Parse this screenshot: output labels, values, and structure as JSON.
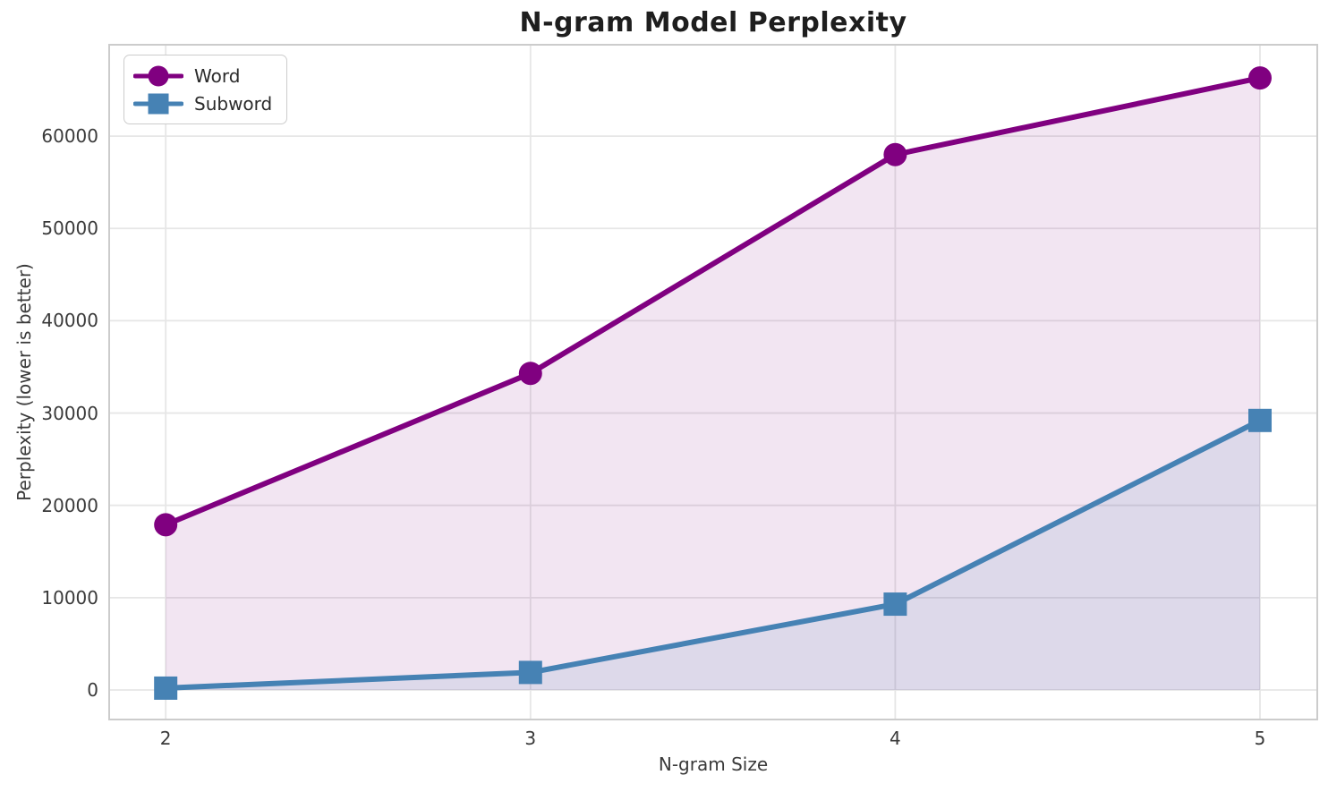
{
  "chart_data": {
    "type": "line",
    "title": "N-gram Model Perplexity",
    "xlabel": "N-gram Size",
    "ylabel": "Perplexity (lower is better)",
    "x": [
      2,
      3,
      4,
      5
    ],
    "series": [
      {
        "name": "Word",
        "color": "#800080",
        "marker": "circle",
        "fill_alpha": 0.1,
        "values": [
          17900,
          34300,
          58000,
          66300
        ]
      },
      {
        "name": "Subword",
        "color": "#4682b4",
        "marker": "square",
        "fill_alpha": 0.12,
        "values": [
          200,
          1900,
          9300,
          29200
        ]
      }
    ],
    "xticks": [
      2,
      3,
      4,
      5
    ],
    "yticks": [
      0,
      10000,
      20000,
      30000,
      40000,
      50000,
      60000
    ],
    "xlim": [
      1.845,
      5.157
    ],
    "ylim": [
      -3200,
      69900
    ],
    "grid": true,
    "legend_position": "upper left",
    "fill_baseline": 0,
    "colors": {
      "grid": "#e6e6e6",
      "spine": "#cccccc",
      "tick_text": "#3a3a3a",
      "title_text": "#1e1e1e"
    }
  }
}
